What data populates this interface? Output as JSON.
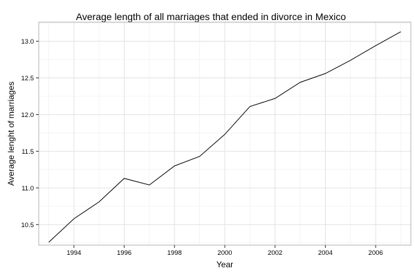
{
  "chart_data": {
    "type": "line",
    "title": "Average length of all marriages that ended in divorce in Mexico",
    "xlabel": "Year",
    "ylabel": "Average lenght of marriages",
    "xlim": [
      1992.6,
      2007.4
    ],
    "ylim": [
      10.22,
      13.26
    ],
    "x_ticks": [
      1994,
      1996,
      1998,
      2000,
      2002,
      2004,
      2006
    ],
    "x_tick_labels": [
      "1994",
      "1996",
      "1998",
      "2000",
      "2002",
      "2004",
      "2006"
    ],
    "y_ticks": [
      10.5,
      11.0,
      11.5,
      12.0,
      12.5,
      13.0
    ],
    "y_tick_labels": [
      "10.5",
      "11.0",
      "11.5",
      "12.0",
      "12.5",
      "13.0"
    ],
    "grid": true,
    "series": [
      {
        "x": [
          1993,
          1994,
          1995,
          1996,
          1997,
          1998,
          1999,
          2000,
          2001,
          2002,
          2003,
          2004,
          2005,
          2006,
          2007
        ],
        "values": [
          10.26,
          10.58,
          10.81,
          11.13,
          11.04,
          11.3,
          11.43,
          11.73,
          12.11,
          12.22,
          12.44,
          12.56,
          12.74,
          12.94,
          13.13
        ],
        "color": "#000000"
      }
    ]
  }
}
